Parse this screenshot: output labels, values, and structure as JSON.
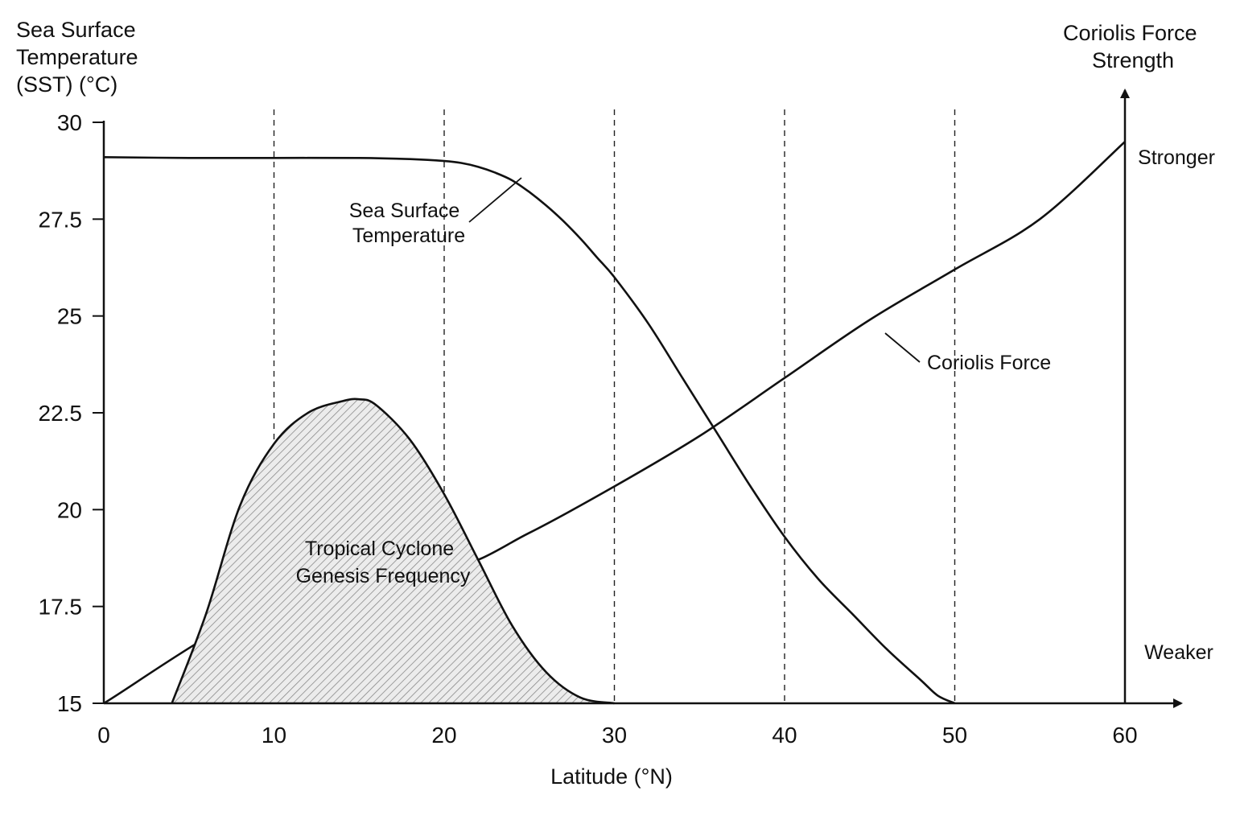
{
  "chart_data": {
    "type": "line",
    "x_axis": {
      "label": "Latitude (°N)",
      "range": [
        0,
        60
      ],
      "ticks": [
        0,
        10,
        20,
        30,
        40,
        50,
        60
      ],
      "tick_labels": [
        "0",
        "10",
        "20",
        "30",
        "40",
        "50",
        "60"
      ]
    },
    "y_axis_left": {
      "label_lines": [
        "Sea Surface",
        "Temperature",
        "(SST) (°C)"
      ],
      "range": [
        15,
        30
      ],
      "ticks": [
        15,
        17.5,
        20,
        22.5,
        25,
        27.5,
        30
      ],
      "tick_labels": [
        "15",
        "17.5",
        "20",
        "22.5",
        "25",
        "27.5",
        "30"
      ]
    },
    "y_axis_right": {
      "label_lines": [
        "Coriolis Force",
        "Strength"
      ],
      "top_label": "Stronger",
      "bottom_label": "Weaker"
    },
    "grid": {
      "vertical_dashed_at": [
        10,
        20,
        30,
        40,
        50
      ]
    },
    "series": [
      {
        "name": "Sea Surface Temperature",
        "label_lines": [
          "Sea Surface",
          "Temperature"
        ],
        "x": [
          0,
          5,
          10,
          15,
          18,
          20,
          21,
          22,
          23,
          24,
          25,
          26,
          27,
          28,
          29,
          30,
          32,
          34,
          36,
          38,
          40,
          42,
          44,
          46,
          48,
          49,
          50
        ],
        "y": [
          29.1,
          29.08,
          29.08,
          29.08,
          29.05,
          29.0,
          28.95,
          28.85,
          28.7,
          28.5,
          28.2,
          27.85,
          27.45,
          27.0,
          26.5,
          26.0,
          24.8,
          23.4,
          22.0,
          20.6,
          19.3,
          18.2,
          17.3,
          16.4,
          15.6,
          15.2,
          15.0
        ]
      },
      {
        "name": "Coriolis Force",
        "label_lines": [
          "Coriolis Force"
        ],
        "x": [
          0,
          10,
          20,
          25,
          30,
          35,
          40,
          45,
          50,
          55,
          60
        ],
        "y": [
          15.0,
          17.6,
          18.4,
          19.4,
          20.6,
          21.9,
          23.4,
          24.9,
          26.2,
          27.5,
          29.5
        ]
      },
      {
        "name": "Tropical Cyclone Genesis Frequency",
        "label_lines": [
          "Tropical Cyclone",
          "Genesis Frequency"
        ],
        "style": "filled-hatched",
        "x": [
          4,
          6,
          8,
          10,
          12,
          14,
          15,
          16,
          18,
          20,
          22,
          24,
          26,
          28,
          30
        ],
        "y": [
          15.0,
          17.3,
          20.1,
          21.7,
          22.5,
          22.8,
          22.85,
          22.7,
          21.8,
          20.4,
          18.7,
          17.0,
          15.8,
          15.15,
          15.0
        ]
      }
    ]
  }
}
